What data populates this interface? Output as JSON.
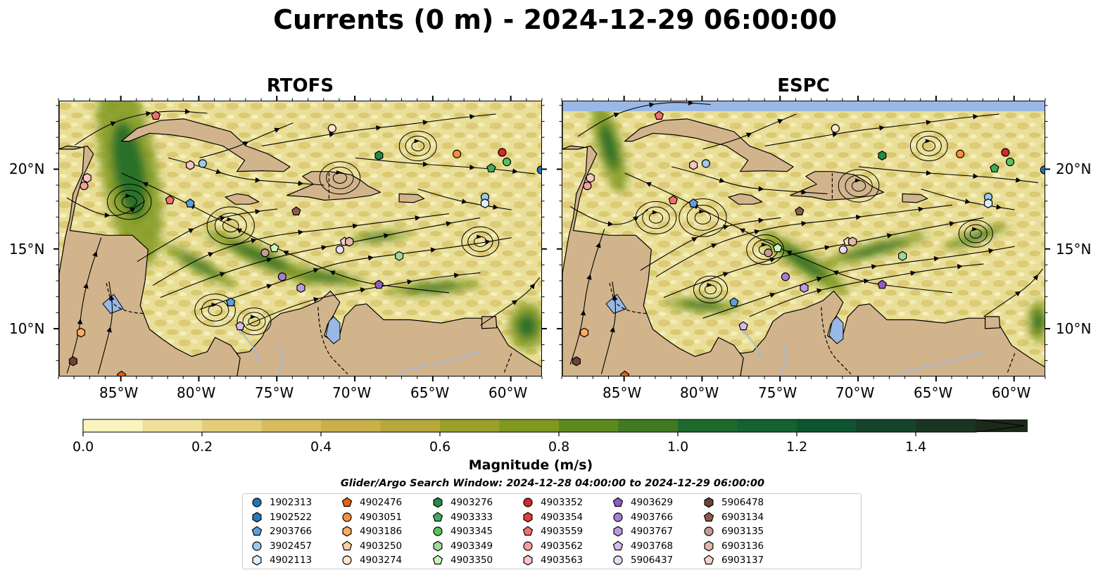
{
  "title": "Currents (0 m) - 2024-12-29 06:00:00",
  "panels": [
    {
      "title": "RTOFS"
    },
    {
      "title": "ESPC"
    }
  ],
  "map": {
    "extent_lon": [
      -89,
      -58
    ],
    "extent_lat": [
      7,
      24.3
    ],
    "lon_ticks": [
      "85°W",
      "80°W",
      "75°W",
      "70°W",
      "65°W",
      "60°W"
    ],
    "lat_ticks": [
      "10°N",
      "15°N",
      "20°N"
    ],
    "colors": {
      "land": "#d2b48c",
      "water": "#9ab8e6",
      "high_speed": "#1e6b2a",
      "stream": "#000000"
    }
  },
  "colorbar": {
    "label": "Magnitude (m/s)",
    "ticks": [
      "0.0",
      "0.2",
      "0.4",
      "0.6",
      "0.8",
      "1.0",
      "1.2",
      "1.4"
    ],
    "range": [
      0,
      1.5
    ],
    "extend": "max",
    "colors": [
      "#fcf4c0",
      "#f0e19a",
      "#e3cd78",
      "#d6bc5c",
      "#c8b04a",
      "#b6a83a",
      "#9aa02a",
      "#7e9820",
      "#5c8a1e",
      "#3f7a22",
      "#1f6a2a",
      "#136230",
      "#0f5430",
      "#15442b",
      "#1a3524",
      "#1c2a1c"
    ]
  },
  "search_window": "Glider/Argo Search Window: 2024-12-28 04:00:00 to 2024-12-29 06:00:00",
  "legend": [
    {
      "label": "1902313",
      "marker": "circle",
      "color": "#1f77b4"
    },
    {
      "label": "1902522",
      "marker": "hexagon",
      "color": "#2f78b4"
    },
    {
      "label": "2903766",
      "marker": "pentagon",
      "color": "#5ca0dc"
    },
    {
      "label": "3902457",
      "marker": "circle",
      "color": "#9ecae9"
    },
    {
      "label": "4902113",
      "marker": "hexagon",
      "color": "#ddeeff"
    },
    {
      "label": "4902476",
      "marker": "pentagon",
      "color": "#e6600c"
    },
    {
      "label": "4903051",
      "marker": "circle",
      "color": "#fd8d3c"
    },
    {
      "label": "4903186",
      "marker": "hexagon",
      "color": "#fdab62"
    },
    {
      "label": "4903250",
      "marker": "pentagon",
      "color": "#fdd0a2"
    },
    {
      "label": "4903274",
      "marker": "circle",
      "color": "#fee6ce"
    },
    {
      "label": "4903276",
      "marker": "hexagon",
      "color": "#238b45"
    },
    {
      "label": "4903333",
      "marker": "pentagon",
      "color": "#41ab5d"
    },
    {
      "label": "4903345",
      "marker": "circle",
      "color": "#5cc05c"
    },
    {
      "label": "4903349",
      "marker": "hexagon",
      "color": "#a1d99b"
    },
    {
      "label": "4903350",
      "marker": "pentagon",
      "color": "#c7f5b9"
    },
    {
      "label": "4903352",
      "marker": "circle",
      "color": "#d62728"
    },
    {
      "label": "4903354",
      "marker": "hexagon",
      "color": "#e0403a"
    },
    {
      "label": "4903559",
      "marker": "pentagon",
      "color": "#f07070"
    },
    {
      "label": "4903562",
      "marker": "circle",
      "color": "#f4a0a0"
    },
    {
      "label": "4903563",
      "marker": "hexagon",
      "color": "#fcc5c5"
    },
    {
      "label": "4903629",
      "marker": "pentagon",
      "color": "#8e5cc8"
    },
    {
      "label": "4903766",
      "marker": "circle",
      "color": "#a67ed4"
    },
    {
      "label": "4903767",
      "marker": "hexagon",
      "color": "#bc9ae0"
    },
    {
      "label": "4903768",
      "marker": "pentagon",
      "color": "#d6bcef"
    },
    {
      "label": "5906437",
      "marker": "circle",
      "color": "#ecdaf8"
    },
    {
      "label": "5906478",
      "marker": "hexagon",
      "color": "#6e4336"
    },
    {
      "label": "6903134",
      "marker": "pentagon",
      "color": "#8c5b4e"
    },
    {
      "label": "6903135",
      "marker": "circle",
      "color": "#c49c94"
    },
    {
      "label": "6903136",
      "marker": "hexagon",
      "color": "#e2b8ad"
    },
    {
      "label": "6903137",
      "marker": "pentagon",
      "color": "#f6d3c8"
    }
  ]
}
